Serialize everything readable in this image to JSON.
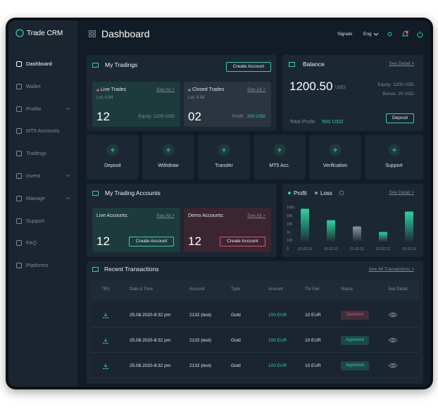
{
  "sidebar": {
    "brand": "Trade CRM",
    "active": 0,
    "menu": [
      {
        "label": "Dashboard",
        "submenu": false
      },
      {
        "label": "Wallet",
        "submenu": false
      },
      {
        "label": "Profile",
        "submenu": true
      },
      {
        "label": "MT5 Accounts",
        "submenu": false
      },
      {
        "label": "Tradings",
        "submenu": false
      },
      {
        "label": "Invest",
        "submenu": true
      },
      {
        "label": "Manage",
        "submenu": true
      },
      {
        "label": "Support",
        "submenu": false
      },
      {
        "label": "FAQ",
        "submenu": false
      },
      {
        "label": "Platforms",
        "submenu": false
      }
    ]
  },
  "header": {
    "title": "Dashboard",
    "signals": "Signals",
    "language": "Eng"
  },
  "my_tradings": {
    "title": "My Tradings",
    "button": "Create Account",
    "live": {
      "title": "Live Trades",
      "link": "See All >",
      "lot": "Lot: 4.94",
      "count": "12",
      "equity": "Equity: 1200 USD"
    },
    "closed": {
      "title": "Closed Trades",
      "link": "See All >",
      "lot": "Lot: 4.94",
      "count": "02",
      "profit_label": "Profit:",
      "profit": "200 USD"
    }
  },
  "balance": {
    "title": "Balance",
    "link": "See Detail >",
    "amount": "1200.50",
    "currency": "USD",
    "equity": "Equity: 1200 USD",
    "bonus": "Bonus: 20 USD",
    "total_profit_label": "Total Profit:",
    "total_profit": "500 USD",
    "button": "Deposit"
  },
  "actions": [
    "Deposit",
    "Withdraw",
    "Transfer",
    "MT5 Acc.",
    "Verification",
    "Support"
  ],
  "trading_accounts": {
    "title": "My Trading Accounts",
    "live": {
      "title": "Live Accounts:",
      "link": "See All >",
      "count": "12",
      "button": "Create Account"
    },
    "demo": {
      "title": "Demo Accounts:",
      "link": "See All >",
      "count": "12",
      "button": "Create Account"
    }
  },
  "profit_loss": {
    "link": "See Detail >",
    "chart": {
      "type": "bar",
      "categories": [
        "01.02.12",
        "01.02.12",
        "01.02.12",
        "01.02.12",
        "01.02.12"
      ],
      "series": [
        {
          "name": "Profit",
          "color": "#2fd3a0",
          "values": [
            90000,
            27000,
            null,
            1000,
            73000
          ]
        },
        {
          "name": "Loss",
          "color": "#8a96a3",
          "values": [
            null,
            null,
            7000,
            null,
            null
          ]
        }
      ],
      "ylim": [
        0,
        100000
      ],
      "yticks": [
        {
          "value": 100000,
          "label": "100k"
        },
        {
          "value": 50000,
          "label": "50k"
        },
        {
          "value": 10000,
          "label": "10k"
        },
        {
          "value": 1000,
          "label": "1k"
        },
        100,
        0
      ]
    }
  },
  "transactions": {
    "title": "Recent Transactions",
    "link": "See All Transactions >",
    "columns": [
      "TRX",
      "Date & Time",
      "Account",
      "Type",
      "Amount",
      "Trx Fee",
      "Status",
      "See Detail"
    ],
    "rows": [
      {
        "date": "25.08.2020-8:32 pm",
        "account": "2132 (test)",
        "type": "Gold",
        "amount": "100 EUR",
        "fee": "10 EUR",
        "status": "Declined",
        "status_color": "#e0566a"
      },
      {
        "date": "25.08.2020-8:32 pm",
        "account": "2132 (test)",
        "type": "Gold",
        "amount": "100 EUR",
        "fee": "10 EUR",
        "status": "Approved",
        "status_color": "#2fd3a0"
      },
      {
        "date": "25.08.2020-8:32 pm",
        "account": "2132 (test)",
        "type": "Gold",
        "amount": "100 EUR",
        "fee": "10 EUR",
        "status": "Approved",
        "status_color": "#2fd3a0"
      }
    ]
  }
}
